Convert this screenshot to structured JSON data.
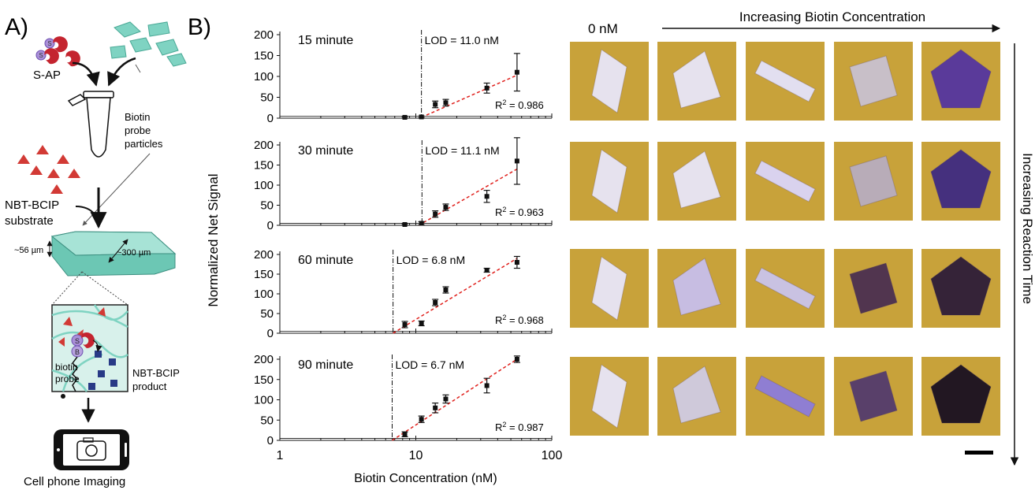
{
  "panel_a": {
    "label": "A)",
    "s_ap_label": "S-AP",
    "s_glyph": "S",
    "b_glyph": "B",
    "biotin_probe_particles_line1": "Biotin",
    "biotin_probe_particles_line2": "probe",
    "biotin_probe_particles_line3": "particles",
    "substrate_line1": "NBT-BCIP",
    "substrate_line2": "substrate",
    "thickness_label": "~56 µm",
    "width_label": "~300 µm",
    "biotin_probe_line1": "biotin",
    "biotin_probe_line2": "probe",
    "product_line1": "NBT-BCIP",
    "product_line2": "product",
    "imaging_label": "Cell phone Imaging",
    "colors": {
      "particle": "#7fd3c2",
      "substrate": "#d23a35",
      "sap": "#c4242f",
      "product": "#283a86",
      "streptavidin": "#a98fd8"
    }
  },
  "panel_b": {
    "label": "B)",
    "y_axis_label": "Normalized Net Signal",
    "x_axis_label": "Biotin Concentration (nM)",
    "x_tick_labels": [
      "1",
      "10",
      "100"
    ],
    "y_tick_labels": [
      "0",
      "50",
      "100",
      "150",
      "200"
    ],
    "r2_prefix": "R",
    "r2_sup": "2"
  },
  "chart_data": [
    {
      "type": "scatter",
      "title": "15 minute",
      "annotation": "LOD = 11.0 nM",
      "r2_value": " = 0.986",
      "x_scale": "log",
      "xlim": [
        1,
        100
      ],
      "ylim": [
        0,
        200
      ],
      "lod": 11.0,
      "x": [
        8.3,
        11.0,
        13.9,
        16.6,
        33.3,
        55.5
      ],
      "y": [
        2,
        3,
        33,
        37,
        72,
        110
      ],
      "err": [
        2,
        2,
        8,
        8,
        12,
        45
      ],
      "fit": {
        "x0": 11.0,
        "y0": 2,
        "x1": 55.5,
        "y1": 103
      }
    },
    {
      "type": "scatter",
      "title": "30 minute",
      "annotation": "LOD = 11.1 nM",
      "r2_value": " = 0.963",
      "x_scale": "log",
      "xlim": [
        1,
        100
      ],
      "ylim": [
        0,
        200
      ],
      "lod": 11.1,
      "x": [
        8.3,
        11.0,
        13.9,
        16.6,
        33.3,
        55.5
      ],
      "y": [
        2,
        5,
        28,
        45,
        72,
        160
      ],
      "err": [
        2,
        4,
        8,
        8,
        15,
        58
      ],
      "fit": {
        "x0": 10.5,
        "y0": 0,
        "x1": 55.5,
        "y1": 140
      }
    },
    {
      "type": "scatter",
      "title": "60 minute",
      "annotation": "LOD = 6.8 nM",
      "r2_value": " = 0.968",
      "x_scale": "log",
      "xlim": [
        1,
        100
      ],
      "ylim": [
        0,
        200
      ],
      "lod": 6.8,
      "x": [
        8.3,
        11.0,
        13.9,
        16.6,
        33.3,
        55.5
      ],
      "y": [
        22,
        25,
        78,
        110,
        160,
        180
      ],
      "err": [
        8,
        6,
        8,
        8,
        5,
        15
      ],
      "fit": {
        "x0": 6.8,
        "y0": 0,
        "x1": 55.5,
        "y1": 190
      }
    },
    {
      "type": "scatter",
      "title": "90 minute",
      "annotation": "LOD = 6.7 nM",
      "r2_value": " = 0.987",
      "x_scale": "log",
      "xlim": [
        1,
        100
      ],
      "ylim": [
        0,
        200
      ],
      "lod": 6.7,
      "x": [
        8.3,
        11.0,
        13.9,
        16.6,
        33.3,
        55.5
      ],
      "y": [
        15,
        52,
        80,
        102,
        135,
        200
      ],
      "err": [
        6,
        8,
        12,
        10,
        18,
        8
      ],
      "fit": {
        "x0": 6.7,
        "y0": 0,
        "x1": 55.5,
        "y1": 200
      }
    }
  ],
  "photo_grid": {
    "zero_label": "0 nM",
    "col_header": "Increasing Biotin Concentration",
    "row_header": "Increasing Reaction Time",
    "background_color": "#c8a23a",
    "particle_shapes": [
      "rhombus",
      "trapezoid",
      "rectangle",
      "square",
      "pentagon"
    ],
    "row_colors": [
      [
        "#e6e2ee",
        "#e6e2ee",
        "#e2dff0",
        "#c8bfc8",
        "#5a3a9a"
      ],
      [
        "#e6e2ee",
        "#e6e2ee",
        "#d9d2ee",
        "#b8acb8",
        "#45307e"
      ],
      [
        "#e6e2ee",
        "#c7bde2",
        "#c9c2e2",
        "#51354f",
        "#352338"
      ],
      [
        "#e6e2ee",
        "#cfc9da",
        "#8f7ed2",
        "#59406a",
        "#221722"
      ]
    ]
  }
}
